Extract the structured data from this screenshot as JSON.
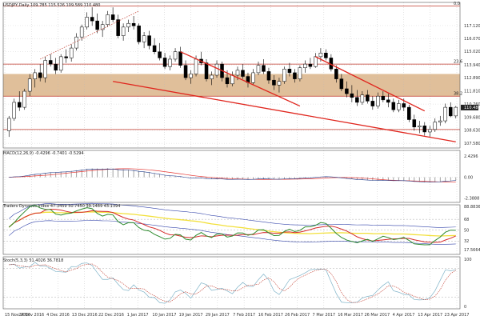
{
  "header": {
    "symbol_text": "USDJPY,Daily  109.785 115.526 109.589 110.480"
  },
  "chart_data": {
    "type": "candlestick",
    "main": {
      "ylim": [
        107.2,
        119.0
      ],
      "price_ticks": [
        "117.120",
        "116.070",
        "115.020",
        "113.940",
        "112.890",
        "111.810",
        "110.760",
        "109.680",
        "108.630",
        "107.580"
      ],
      "current_price_label": "110.480",
      "fib_labels": [
        "0.0",
        "23.6",
        "38.2"
      ],
      "fib_levels": [
        118.7,
        114.0,
        111.4
      ],
      "zone": [
        111.4,
        113.2
      ],
      "hlines": [
        118.7,
        114.0,
        111.4,
        108.7
      ],
      "candles": [
        [
          108.6,
          109.8,
          108.1,
          109.6
        ],
        [
          109.6,
          111.2,
          109.4,
          110.9
        ],
        [
          110.9,
          111.8,
          110.2,
          110.5
        ],
        [
          110.5,
          112.0,
          110.3,
          111.8
        ],
        [
          111.8,
          113.2,
          111.4,
          112.8
        ],
        [
          112.8,
          113.6,
          112.1,
          113.3
        ],
        [
          113.3,
          114.0,
          112.6,
          112.9
        ],
        [
          112.9,
          114.6,
          112.5,
          114.3
        ],
        [
          114.3,
          114.8,
          113.8,
          114.0
        ],
        [
          114.0,
          114.5,
          113.2,
          113.5
        ],
        [
          113.5,
          114.8,
          113.3,
          114.6
        ],
        [
          114.6,
          115.2,
          114.1,
          114.5
        ],
        [
          114.5,
          115.6,
          114.2,
          115.3
        ],
        [
          115.3,
          116.5,
          115.1,
          116.2
        ],
        [
          116.2,
          117.2,
          115.9,
          117.0
        ],
        [
          117.0,
          118.2,
          116.8,
          117.8
        ],
        [
          117.8,
          118.6,
          117.1,
          117.5
        ],
        [
          117.5,
          118.1,
          116.5,
          116.8
        ],
        [
          116.8,
          117.5,
          116.2,
          117.2
        ],
        [
          117.2,
          118.3,
          117.0,
          118.0
        ],
        [
          118.0,
          118.6,
          117.4,
          117.6
        ],
        [
          117.6,
          118.0,
          116.1,
          116.3
        ],
        [
          116.3,
          117.3,
          115.9,
          117.0
        ],
        [
          117.0,
          117.6,
          116.6,
          117.3
        ],
        [
          117.3,
          117.9,
          116.8,
          117.1
        ],
        [
          117.1,
          117.3,
          115.6,
          115.8
        ],
        [
          115.8,
          116.6,
          115.3,
          116.3
        ],
        [
          116.3,
          116.7,
          115.2,
          115.5
        ],
        [
          115.5,
          116.1,
          114.8,
          115.0
        ],
        [
          115.0,
          115.7,
          114.3,
          114.5
        ],
        [
          114.5,
          114.9,
          113.6,
          113.8
        ],
        [
          113.8,
          114.7,
          113.5,
          114.4
        ],
        [
          114.4,
          115.3,
          114.2,
          115.0
        ],
        [
          115.0,
          115.4,
          113.7,
          113.9
        ],
        [
          113.9,
          114.3,
          112.7,
          112.9
        ],
        [
          112.9,
          113.5,
          112.4,
          113.2
        ],
        [
          113.2,
          114.7,
          113.0,
          114.4
        ],
        [
          114.4,
          115.0,
          113.9,
          114.1
        ],
        [
          114.1,
          114.4,
          112.6,
          112.8
        ],
        [
          112.8,
          113.4,
          112.3,
          113.1
        ],
        [
          113.1,
          114.3,
          112.9,
          114.0
        ],
        [
          114.0,
          114.2,
          112.6,
          112.9
        ],
        [
          112.9,
          113.5,
          112.1,
          112.4
        ],
        [
          112.4,
          113.4,
          112.2,
          113.1
        ],
        [
          113.1,
          113.8,
          112.7,
          113.5
        ],
        [
          113.5,
          114.0,
          112.8,
          113.0
        ],
        [
          113.0,
          113.3,
          112.1,
          112.5
        ],
        [
          112.5,
          113.6,
          112.3,
          113.3
        ],
        [
          113.3,
          114.2,
          113.1,
          113.9
        ],
        [
          113.9,
          114.4,
          113.2,
          113.4
        ],
        [
          113.4,
          113.7,
          112.4,
          112.7
        ],
        [
          112.7,
          113.1,
          111.9,
          112.3
        ],
        [
          112.3,
          112.9,
          111.7,
          112.6
        ],
        [
          112.6,
          113.8,
          112.4,
          113.6
        ],
        [
          113.6,
          114.1,
          113.0,
          113.3
        ],
        [
          113.3,
          113.6,
          112.5,
          112.8
        ],
        [
          112.8,
          113.9,
          112.6,
          113.7
        ],
        [
          113.7,
          114.3,
          113.3,
          114.0
        ],
        [
          114.0,
          114.5,
          113.6,
          113.8
        ],
        [
          113.8,
          114.9,
          113.7,
          114.6
        ],
        [
          114.6,
          115.3,
          114.2,
          114.9
        ],
        [
          114.9,
          115.2,
          114.3,
          114.5
        ],
        [
          114.5,
          114.8,
          113.4,
          113.6
        ],
        [
          113.6,
          113.9,
          112.5,
          112.8
        ],
        [
          112.8,
          113.2,
          111.8,
          112.0
        ],
        [
          112.0,
          112.6,
          111.3,
          111.6
        ],
        [
          111.6,
          112.3,
          110.9,
          111.3
        ],
        [
          111.3,
          111.9,
          110.6,
          110.9
        ],
        [
          110.9,
          111.8,
          110.7,
          111.5
        ],
        [
          111.5,
          111.9,
          110.8,
          111.0
        ],
        [
          111.0,
          111.4,
          110.3,
          110.6
        ],
        [
          110.6,
          111.7,
          110.4,
          111.4
        ],
        [
          111.4,
          111.8,
          110.9,
          111.1
        ],
        [
          111.1,
          111.6,
          110.5,
          110.9
        ],
        [
          110.9,
          111.2,
          110.1,
          110.3
        ],
        [
          110.3,
          111.1,
          110.1,
          110.8
        ],
        [
          110.8,
          111.2,
          110.2,
          110.5
        ],
        [
          110.5,
          110.7,
          109.3,
          109.5
        ],
        [
          109.5,
          109.9,
          108.6,
          108.9
        ],
        [
          108.9,
          109.4,
          108.4,
          109.0
        ],
        [
          109.0,
          109.3,
          108.2,
          108.5
        ],
        [
          108.5,
          109.0,
          108.1,
          108.7
        ],
        [
          108.7,
          109.6,
          108.5,
          109.3
        ],
        [
          109.3,
          109.8,
          109.0,
          109.4
        ],
        [
          109.4,
          110.8,
          109.2,
          110.5
        ],
        [
          110.5,
          110.9,
          109.7,
          109.8
        ],
        [
          109.8,
          110.6,
          109.6,
          110.5
        ]
      ],
      "trendlines": [
        {
          "p1": [
            33,
            115.0
          ],
          "p2": [
            56,
            110.6
          ],
          "color": "#e0261e"
        },
        {
          "p1": [
            20,
            112.6
          ],
          "p2": [
            86,
            107.7
          ],
          "color": "#e0261e"
        },
        {
          "p1": [
            59,
            114.6
          ],
          "p2": [
            80,
            110.2
          ],
          "color": "#e0261e"
        }
      ],
      "dotted_trend": {
        "p1": [
          6,
          114.4
        ],
        "p2": [
          25,
          118.3
        ]
      }
    },
    "macd": {
      "label": "MACD(12,26,9) -0.4296 -0.7401 -0.5294",
      "ylim": [
        -2.9,
        3.1
      ],
      "ticks": [
        "2.4296",
        "0.00",
        "-2.3888"
      ]
    },
    "tdi": {
      "label": "Traders Dynamic Index 47.3459 50.7450 39.1489 43.1394",
      "ylim": [
        10,
        92
      ],
      "ticks": [
        "88.8836",
        "68",
        "50",
        "32",
        "17.5664"
      ]
    },
    "stoch": {
      "label": "Stoch(5,3,3) 51.4026 36.7818",
      "ylim": [
        -5,
        105
      ],
      "ticks": [
        "100",
        "0"
      ]
    },
    "x_labels": [
      "15 Nov 2016",
      "24 Nov 2016",
      "4 Dec 2016",
      "13 Dec 2016",
      "22 Dec 2016",
      "1 Jan 2017",
      "10 Jan 2017",
      "19 Jan 2017",
      "29 Jan 2017",
      "7 Feb 2017",
      "16 Feb 2017",
      "26 Feb 2017",
      "7 Mar 2017",
      "16 Mar 2017",
      "26 Mar 2017",
      "4 Apr 2017",
      "13 Apr 2017",
      "23 Apr 2017"
    ]
  }
}
